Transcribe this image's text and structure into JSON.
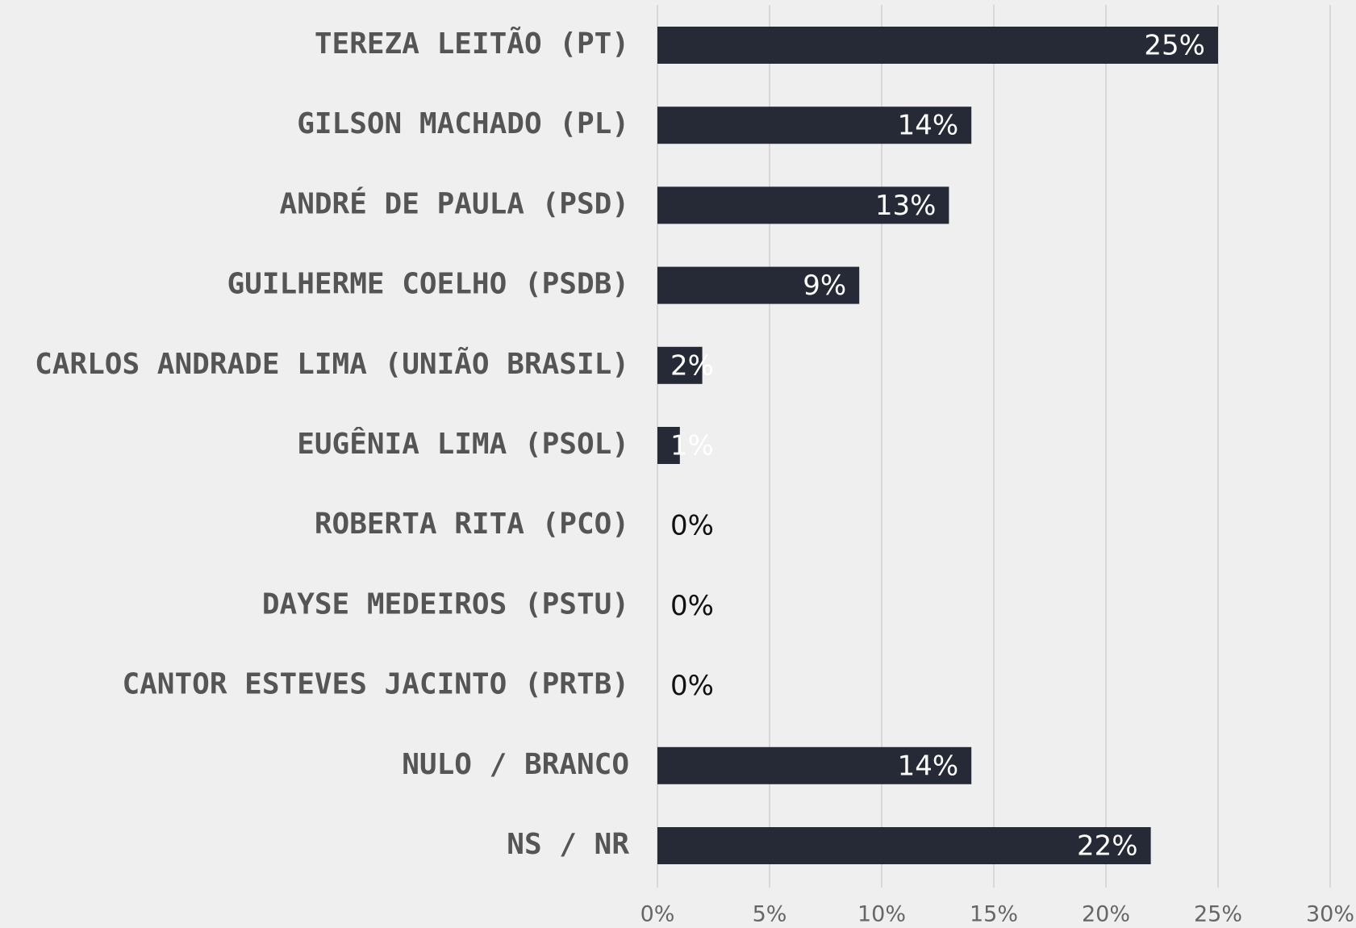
{
  "chart_data": {
    "type": "bar",
    "orientation": "horizontal",
    "categories": [
      "TEREZA LEITÃO (PT)",
      "GILSON MACHADO (PL)",
      "ANDRÉ DE PAULA (PSD)",
      "GUILHERME COELHO (PSDB)",
      "CARLOS ANDRADE LIMA (UNIÃO BRASIL)",
      "EUGÊNIA LIMA (PSOL)",
      "ROBERTA RITA (PCO)",
      "DAYSE MEDEIROS (PSTU)",
      "CANTOR ESTEVES JACINTO (PRTB)",
      "NULO / BRANCO",
      "NS / NR"
    ],
    "values": [
      25,
      14,
      13,
      9,
      2,
      1,
      0,
      0,
      0,
      14,
      22
    ],
    "value_labels": [
      "25%",
      "14%",
      "13%",
      "9%",
      "2%",
      "1%",
      "0%",
      "0%",
      "0%",
      "14%",
      "22%"
    ],
    "color": "#252a36",
    "xlim": [
      0,
      30
    ],
    "xticks": [
      {
        "value": 0,
        "label": "0%"
      },
      {
        "value": 5,
        "label": "5%"
      },
      {
        "value": 10,
        "label": "10%"
      },
      {
        "value": 15,
        "label": "15%"
      },
      {
        "value": 20,
        "label": "20%"
      },
      {
        "value": 25,
        "label": "25%"
      },
      {
        "value": 30,
        "label": "30%"
      }
    ],
    "grid": true
  }
}
